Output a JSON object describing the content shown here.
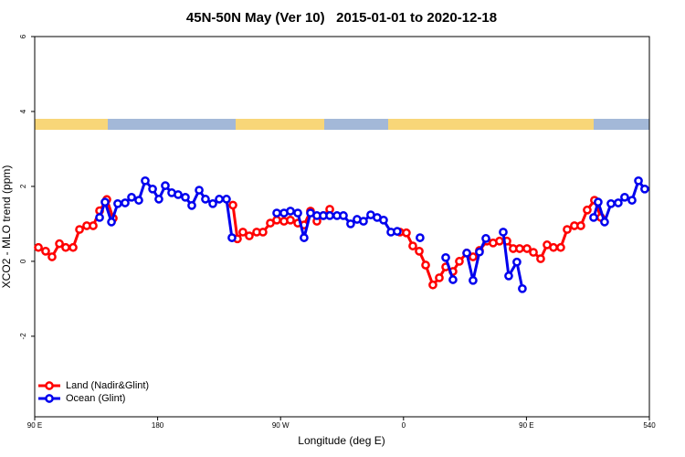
{
  "chart_data": {
    "type": "line",
    "title": "45N-50N May (Ver 10)   2015-01-01 to 2020-12-18",
    "x_label": "Longitude (deg E)",
    "y_label": "XCO2 - MLO trend (ppm)",
    "xlim": [
      90,
      540
    ],
    "ylim": [
      -4.15,
      6
    ],
    "xticks": [
      {
        "value": 90,
        "label": "90 E"
      },
      180,
      {
        "value": 270,
        "label": "90 W"
      },
      {
        "value": 360,
        "label": "0"
      },
      {
        "value": 450,
        "label": "90 E"
      },
      540
    ],
    "yticks": [
      -2,
      0,
      2,
      4,
      6
    ],
    "legend": "bottom-left",
    "series": [
      {
        "name": "Land (Nadir&Glint)",
        "color": "#ff0000",
        "x": [
          92.7,
          98.0,
          102.7,
          108.1,
          112.7,
          118.1,
          122.8,
          128.1,
          132.8,
          137.5,
          142.8,
          147.5,
          200,
          235.1,
          238.4,
          242.4,
          247.1,
          252.5,
          257.1,
          262.5,
          267.2,
          272.5,
          277.2,
          282.6,
          287.2,
          291.9,
          296.6,
          301.3,
          306.0,
          380,
          357.4,
          362.1,
          366.8,
          371.5,
          376.2,
          381.5,
          386.2,
          390.9,
          396.2,
          400.9,
          406.3,
          410.9,
          415.6,
          421.0,
          425.6,
          430.3,
          435.7,
          440.3,
          445.0,
          450.4,
          455.1,
          460.4,
          465.1,
          469.8,
          475.1,
          479.8,
          485.1,
          489.8,
          494.5,
          499.8,
          504.5
        ],
        "values": [
          0.37,
          0.27,
          0.12,
          0.47,
          0.37,
          0.37,
          0.85,
          0.95,
          0.95,
          1.35,
          1.65,
          1.15,
          null,
          1.5,
          0.6,
          0.78,
          0.68,
          0.78,
          0.78,
          1.02,
          1.1,
          1.07,
          1.1,
          1.02,
          0.97,
          1.34,
          1.07,
          1.22,
          1.39,
          null,
          0.78,
          0.76,
          0.41,
          0.27,
          -0.1,
          -0.63,
          -0.44,
          -0.15,
          -0.27,
          0,
          0.22,
          0.12,
          0.29,
          0.54,
          0.49,
          0.54,
          0.54,
          0.34,
          0.34,
          0.34,
          0.24,
          0.07,
          0.44,
          0.37,
          0.37,
          0.85,
          0.95,
          0.95,
          1.37,
          1.63,
          1.17
        ]
      },
      {
        "name": "Ocean (Glint)",
        "color": "#0000ee",
        "x": [
          137.5,
          141.5,
          146.2,
          150.8,
          156.2,
          160.9,
          166.2,
          170.9,
          176.3,
          180.9,
          185.6,
          190.3,
          195.0,
          200.3,
          205.0,
          210.4,
          215.0,
          220.4,
          225.1,
          230.4,
          234.4,
          250,
          267.2,
          272.5,
          277.2,
          282.6,
          287.2,
          291.9,
          296.6,
          301.3,
          306.0,
          311.3,
          316.0,
          321.3,
          326.0,
          330.7,
          336.0,
          340.7,
          345.4,
          350.8,
          355.4,
          358,
          372.1,
          375,
          390.9,
          396.2,
          398,
          406.3,
          410.9,
          415.6,
          420.3,
          425,
          433.0,
          437.0,
          443.0,
          447.0,
          470,
          499.2,
          502.5,
          507.2,
          511.9,
          517.2,
          521.9,
          527.3,
          532.0,
          536.6
        ],
        "values": [
          1.17,
          1.58,
          1.05,
          1.54,
          1.56,
          1.71,
          1.63,
          2.15,
          1.93,
          1.66,
          2.02,
          1.83,
          1.78,
          1.71,
          1.49,
          1.9,
          1.66,
          1.54,
          1.66,
          1.66,
          0.63,
          null,
          1.29,
          1.29,
          1.34,
          1.29,
          0.63,
          1.29,
          1.22,
          1.22,
          1.22,
          1.22,
          1.22,
          1.0,
          1.12,
          1.07,
          1.24,
          1.17,
          1.1,
          0.78,
          0.8,
          null,
          0.63,
          null,
          0.1,
          -0.49,
          null,
          0.22,
          -0.51,
          0.25,
          0.61,
          null,
          0.78,
          -0.39,
          -0.02,
          -0.73,
          null,
          1.17,
          1.58,
          1.05,
          1.54,
          1.56,
          1.71,
          1.63,
          2.15,
          1.93
        ]
      }
    ]
  }
}
